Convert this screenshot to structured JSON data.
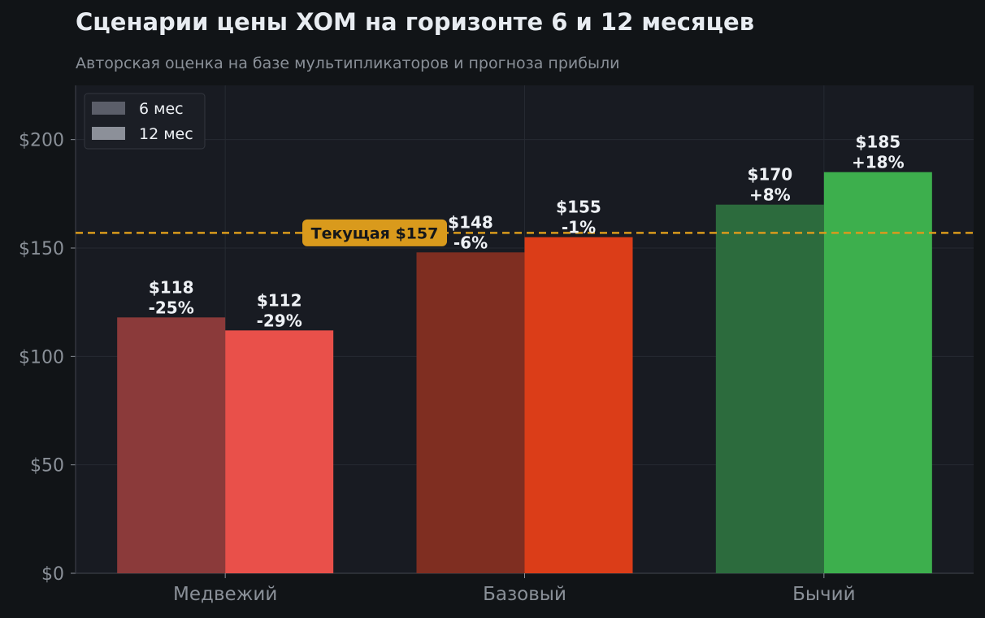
{
  "title": "Сценарии цены XOM на горизонте 6 и 12 месяцев",
  "subtitle": "Авторская оценка на базе мультипликаторов и прогноза прибыли",
  "colors": {
    "background": "#111417",
    "plot_background": "#181b22",
    "grid": "#262a32",
    "axis_text": "#8a9098",
    "label_text": "#eef1f5",
    "reference_line": "#d99a1c",
    "legend_6m": "#5b5e69",
    "legend_12m": "#8c9099"
  },
  "chart_data": {
    "type": "bar",
    "categories": [
      "Медвежий",
      "Базовый",
      "Бычий"
    ],
    "series": [
      {
        "name": "6 мес",
        "values": [
          118,
          148,
          170
        ],
        "labels": [
          "$118\n-25%",
          "$148\n-6%",
          "$170\n+8%"
        ],
        "colors": [
          "#8b3a3a",
          "#7f2e21",
          "#2c6b3d"
        ]
      },
      {
        "name": "12 мес",
        "values": [
          112,
          155,
          185
        ],
        "labels": [
          "$112\n-29%",
          "$155\n-1%",
          "$185\n+18%"
        ],
        "colors": [
          "#e9504a",
          "#db3d18",
          "#3daf4d"
        ]
      }
    ],
    "reference_line": {
      "value": 157,
      "label": "Текущая $157"
    },
    "ylim": [
      0,
      225
    ],
    "yticks": [
      0,
      50,
      100,
      150,
      200
    ],
    "ytick_labels": [
      "$0",
      "$50",
      "$100",
      "$150",
      "$200"
    ],
    "grid": true,
    "legend_position": "top-left",
    "xlabel": "",
    "ylabel": ""
  }
}
